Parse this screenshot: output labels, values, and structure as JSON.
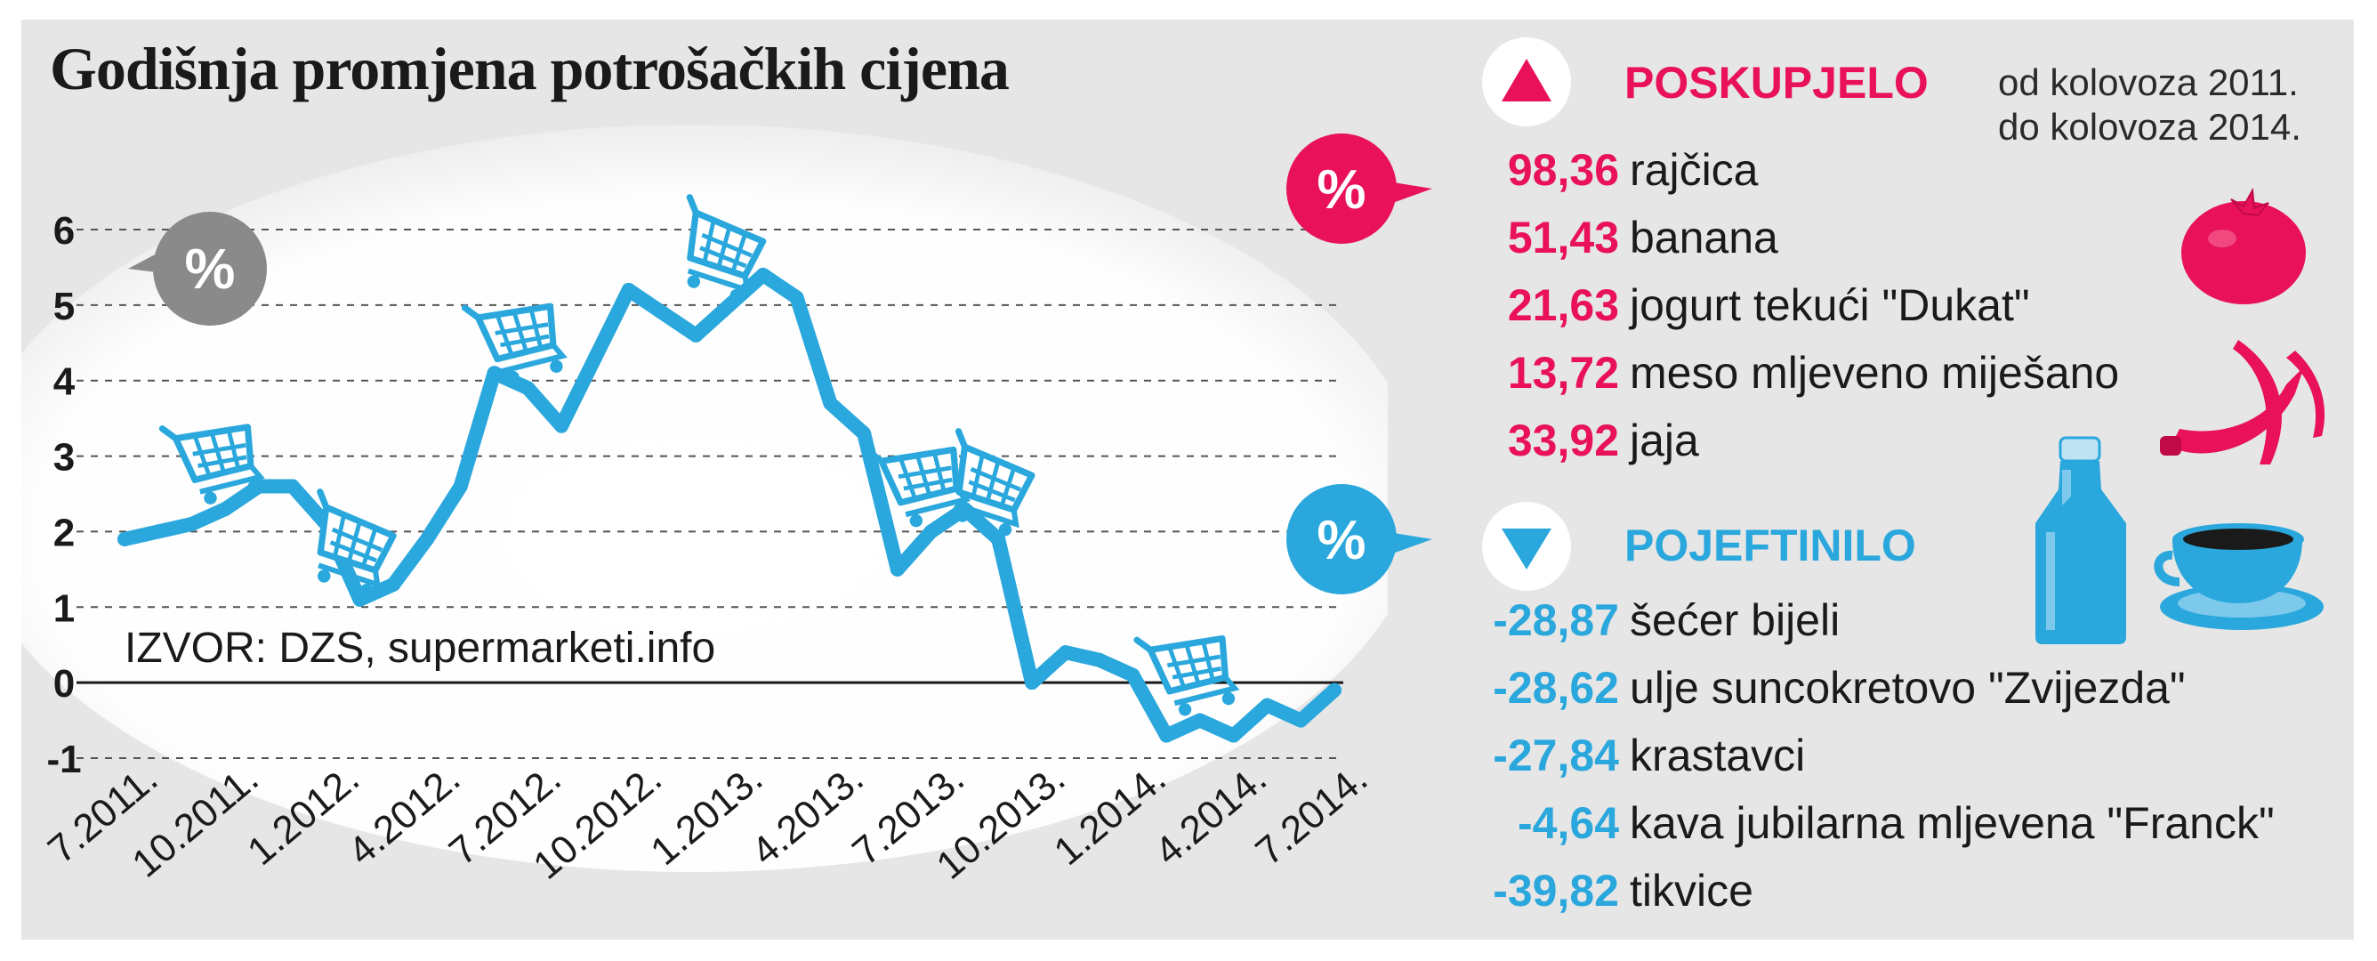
{
  "title": "Godišnja promjena potrošačkih cijena",
  "source": "IZVOR: DZS, supermarketi.info",
  "period": {
    "line1": "od kolovoza 2011.",
    "line2": "do kolovoza 2014."
  },
  "increased": {
    "heading": "POSKUPJELO",
    "items": [
      {
        "value": "98,36",
        "label": "rajčica"
      },
      {
        "value": "51,43",
        "label": "banana"
      },
      {
        "value": "21,63",
        "label": "jogurt tekući \"Dukat\""
      },
      {
        "value": "13,72",
        "label": "meso mljeveno miješano"
      },
      {
        "value": "33,92",
        "label": "jaja"
      }
    ]
  },
  "decreased": {
    "heading": "POJEFTINILO",
    "items": [
      {
        "value": "-28,87",
        "label": "šećer bijeli"
      },
      {
        "value": "-28,62",
        "label": "ulje suncokretovo \"Zvijezda\""
      },
      {
        "value": "-27,84",
        "label": "krastavci"
      },
      {
        "value": "-4,64",
        "label": "kava jubilarna mljevena \"Franck\""
      },
      {
        "value": "-39,82",
        "label": "tikvice"
      }
    ]
  },
  "badge_text": "%",
  "colors": {
    "line": "#2aa7dc",
    "increase": "#e8115a",
    "decrease": "#2aa7dc",
    "badge_grey": "#8a8a8a"
  },
  "icons": [
    "shopping-cart-icon",
    "tomato-icon",
    "banana-icon",
    "milk-bottle-icon",
    "coffee-cup-icon",
    "triangle-up-icon",
    "triangle-down-icon",
    "percent-badge-icon"
  ],
  "chart_data": {
    "type": "line",
    "x_tick_labels": [
      "7.2011.",
      "10.2011.",
      "1.2012.",
      "4.2012.",
      "7.2012.",
      "10.2012.",
      "1.2013.",
      "4.2013.",
      "7.2013.",
      "10.2013.",
      "1.2014.",
      "4.2014.",
      "7.2014."
    ],
    "y_ticks": [
      6,
      5,
      4,
      3,
      2,
      1,
      0,
      -1
    ],
    "ylim": [
      -1,
      6
    ],
    "grid": "dashed horizontal",
    "series": [
      {
        "color": "#2aa7dc",
        "x": [
          "7.2011.",
          "8.2011.",
          "9.2011.",
          "10.2011.",
          "11.2011.",
          "12.2011.",
          "1.2012.",
          "2.2012.",
          "3.2012.",
          "4.2012.",
          "5.2012.",
          "6.2012.",
          "7.2012.",
          "8.2012.",
          "9.2012.",
          "10.2012.",
          "11.2012.",
          "12.2012.",
          "1.2013.",
          "2.2013.",
          "3.2013.",
          "4.2013.",
          "5.2013.",
          "6.2013.",
          "7.2013.",
          "8.2013.",
          "9.2013.",
          "10.2013.",
          "11.2013.",
          "12.2013.",
          "1.2014.",
          "2.2014.",
          "3.2014.",
          "4.2014.",
          "5.2014.",
          "6.2014.",
          "7.2014."
        ],
        "values": [
          1.9,
          2.0,
          2.1,
          2.3,
          2.6,
          2.6,
          2.1,
          1.1,
          1.3,
          1.9,
          2.6,
          4.1,
          3.9,
          3.4,
          4.3,
          5.2,
          4.9,
          4.6,
          5.0,
          5.4,
          5.1,
          3.7,
          3.3,
          1.5,
          2.0,
          2.3,
          1.9,
          0.0,
          0.4,
          0.3,
          0.1,
          -0.7,
          -0.5,
          -0.7,
          -0.3,
          -0.5,
          -0.1
        ]
      }
    ]
  }
}
